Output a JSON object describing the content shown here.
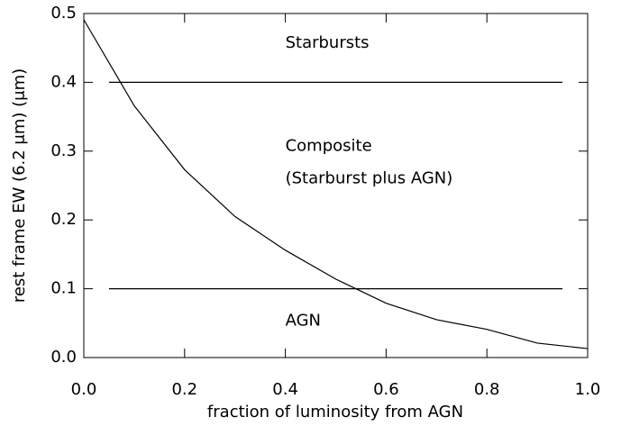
{
  "chart_data": {
    "type": "line",
    "xlabel": "fraction of luminosity from AGN",
    "ylabel": "rest frame EW (6.2 μm) (μm)",
    "xlim": [
      0,
      1
    ],
    "ylim": [
      0,
      0.5
    ],
    "xticks": [
      {
        "value": 0,
        "label": "0.0"
      },
      0.2,
      0.4,
      0.6,
      0.8,
      {
        "value": 1,
        "label": "1.0"
      }
    ],
    "yticks": [
      {
        "value": 0,
        "label": "0.0"
      },
      0.1,
      0.2,
      0.3,
      0.4,
      0.5
    ],
    "series": [
      {
        "color": "#000000",
        "x": [
          0,
          0.1,
          0.2,
          0.3,
          0.4,
          0.5,
          0.6,
          0.7,
          0.8,
          0.9,
          1.0
        ],
        "values": [
          0.491,
          0.366,
          0.273,
          0.205,
          0.156,
          0.114,
          0.079,
          0.055,
          0.041,
          0.021,
          0.013
        ]
      },
      {
        "color": "#000000",
        "x": [
          0.05,
          0.95
        ],
        "values": [
          0.4,
          0.4
        ]
      },
      {
        "color": "#000000",
        "x": [
          0.05,
          0.95
        ],
        "values": [
          0.1,
          0.1
        ]
      }
    ],
    "annotations": [
      "Starbursts",
      "Composite",
      "(Starburst plus AGN)",
      "AGN"
    ]
  }
}
